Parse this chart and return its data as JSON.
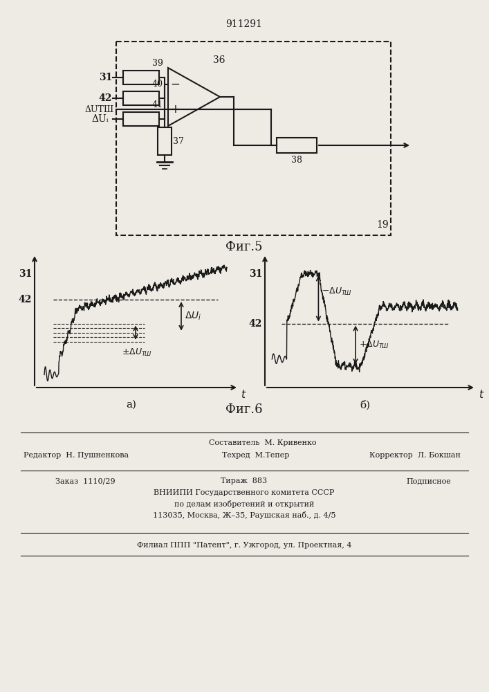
{
  "patent_number": "911291",
  "fig5_label": "Фиг.5",
  "fig6_label": "Фиг.6",
  "graph_a_label": "а)",
  "graph_b_label": "б)",
  "label_31": "31",
  "label_42": "42",
  "label_39": "39",
  "label_40": "40",
  "label_41": "41",
  "label_36": "36",
  "label_37": "37",
  "label_38": "38",
  "label_19": "19",
  "label_31_circuit": "31",
  "label_42_circuit": "42",
  "label_delta_ui_circuit": "ΔUᵢ",
  "label_delta_utm_circuit": "ΔUТШ",
  "editor_line": "Редактор  Н. Пушненкова",
  "composer_line": "Составитель  М. Кривенко",
  "techred_line": "Техред  М.Тепер",
  "corrector_line": "Корректор  Л. Бокшан",
  "order_line": "Заказ  1110/29",
  "tirazh_line": "Тираж  883",
  "podpisnoe_line": "Подписное",
  "vniipи_line": "ВНИИПИ Государственного комитета СССР",
  "po_delam_line": "по делам изобретений и открытий",
  "address_line": "113035, Москва, Ж–35, Раушская наб., д. 4/5",
  "filial_line": "Филиал ППП \"Патент\", г. Ужгород, ул. Проектная, 4",
  "bg_color": "#eeebe5",
  "line_color": "#1a1a1a"
}
